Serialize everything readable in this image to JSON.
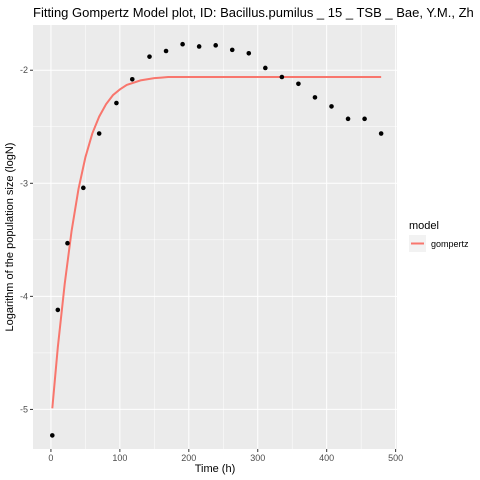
{
  "chart_data": {
    "type": "scatter",
    "title": "Fitting Gompertz Model plot, ID: Bacillus.pumilus _ 15 _ TSB _ Bae, Y.M., Zh",
    "xlabel": "Time (h)",
    "ylabel": "Logarithm of the population size (logN)",
    "xlim": [
      -26,
      502
    ],
    "ylim": [
      -5.35,
      -1.6
    ],
    "x_ticks": [
      0,
      100,
      200,
      300,
      400,
      500
    ],
    "x_tick_labels": [
      "0",
      "100",
      "200",
      "300",
      "400",
      "500"
    ],
    "y_ticks": [
      -5,
      -4,
      -3,
      -2
    ],
    "y_tick_labels": [
      "-5",
      "-4",
      "-3",
      "-2"
    ],
    "grid": true,
    "background": "#ebebeb",
    "legend": {
      "title": "model",
      "placement": "right",
      "entries": [
        {
          "label": "gompertz",
          "color": "#f8766d"
        }
      ]
    },
    "points": {
      "color": "#000000",
      "x": [
        2,
        10,
        24,
        47,
        70,
        95,
        118,
        143,
        167,
        191,
        215,
        239,
        263,
        287,
        311,
        335,
        359,
        383,
        407,
        431,
        455,
        479
      ],
      "y": [
        -5.23,
        -4.12,
        -3.53,
        -3.04,
        -2.56,
        -2.29,
        -2.08,
        -1.88,
        -1.83,
        -1.77,
        -1.79,
        -1.78,
        -1.82,
        -1.85,
        -1.98,
        -2.06,
        -2.12,
        -2.24,
        -2.32,
        -2.43,
        -2.43,
        -2.56
      ]
    },
    "fit": {
      "name": "gompertz",
      "color": "#f8766d",
      "x": [
        2,
        10,
        20,
        30,
        40,
        50,
        60,
        70,
        80,
        90,
        100,
        110,
        120,
        130,
        140,
        150,
        160,
        170,
        180,
        190,
        200,
        250,
        300,
        350,
        400,
        450,
        479
      ],
      "y": [
        -4.99,
        -4.45,
        -3.89,
        -3.42,
        -3.05,
        -2.77,
        -2.56,
        -2.41,
        -2.3,
        -2.22,
        -2.17,
        -2.13,
        -2.11,
        -2.09,
        -2.08,
        -2.07,
        -2.065,
        -2.06,
        -2.06,
        -2.06,
        -2.06,
        -2.06,
        -2.06,
        -2.06,
        -2.06,
        -2.06,
        -2.06
      ]
    }
  }
}
